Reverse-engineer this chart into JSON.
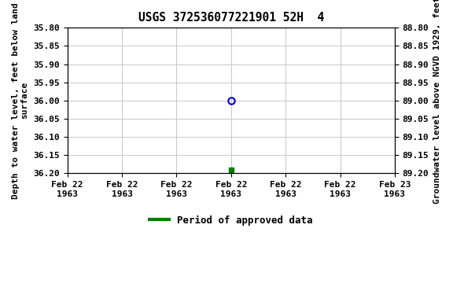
{
  "title": "USGS 372536077221901 52H  4",
  "ylabel_left": "Depth to water level, feet below land\nsurface",
  "ylabel_right": "Groundwater level above NGVD 1929, feet",
  "ylim_left": [
    35.8,
    36.2
  ],
  "ylim_right": [
    89.2,
    88.8
  ],
  "yticks_left": [
    35.8,
    35.85,
    35.9,
    35.95,
    36.0,
    36.05,
    36.1,
    36.15,
    36.2
  ],
  "yticks_right": [
    89.2,
    89.15,
    89.1,
    89.05,
    89.0,
    88.95,
    88.9,
    88.85,
    88.8
  ],
  "blue_point_x": 0.0,
  "blue_point_y": 36.0,
  "green_point_x": 0.0,
  "green_point_y": 36.19,
  "xtick_labels": [
    "Feb 22\n1963",
    "Feb 22\n1963",
    "Feb 22\n1963",
    "Feb 22\n1963",
    "Feb 22\n1963",
    "Feb 22\n1963",
    "Feb 23\n1963"
  ],
  "xlim": [
    -3,
    3
  ],
  "xtick_positions": [
    -3,
    -2,
    -1,
    0,
    1,
    2,
    3
  ],
  "background_color": "#ffffff",
  "grid_color": "#c8c8c8",
  "blue_color": "#0000cc",
  "green_color": "#008000",
  "legend_label": "Period of approved data",
  "title_fontsize": 10.5,
  "axis_fontsize": 8,
  "tick_fontsize": 8,
  "legend_fontsize": 9
}
